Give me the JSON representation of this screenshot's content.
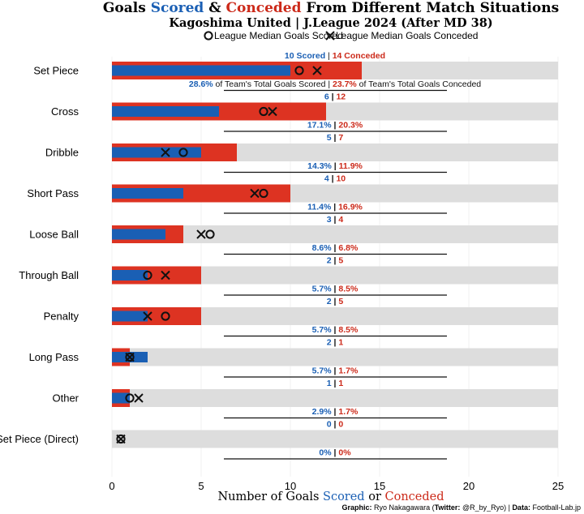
{
  "title": {
    "prefix": "Goals ",
    "scored_word": "Scored",
    "amp": " & ",
    "conceded_word": "Conceded",
    "suffix": " From Different Match Situations"
  },
  "subtitle": "Kagoshima United | J.League 2024 (After MD 38)",
  "legend": {
    "scored_median_label": "League Median Goals Scored",
    "conceded_median_label": "League Median Goals Conceded"
  },
  "colors": {
    "scored": "#1a5fb4",
    "conceded": "#dd3322",
    "track": "#dddddd",
    "scored_text": "#1a5fb4",
    "conceded_text": "#cc2a1a"
  },
  "first_row_labels": {
    "scored_word": "Scored",
    "conceded_word": "Conceded",
    "pct_scored_suffix": " of Team's Total Goals Scored",
    "pct_conceded_suffix": " of Team's Total Goals Conceded"
  },
  "xlabel": {
    "prefix": "Number of Goals ",
    "scored_word": "Scored",
    "or_word": " or ",
    "conceded_word": "Conceded"
  },
  "credit": {
    "graphic_label": "Graphic:",
    "graphic_text": " Ryo Nakagawara (",
    "twitter_label": "Twitter:",
    "twitter_text": " @R_by_Ryo) | ",
    "data_label": "Data:",
    "data_text": " Football-Lab.jp"
  },
  "chart_data": {
    "type": "bar",
    "orientation": "horizontal",
    "xlim": [
      0,
      25
    ],
    "xticks": [
      "0",
      "5",
      "10",
      "15",
      "20",
      "25"
    ],
    "categories": [
      "Set Piece",
      "Cross",
      "Dribble",
      "Short Pass",
      "Loose Ball",
      "Through Ball",
      "Penalty",
      "Long Pass",
      "Other",
      "Set Piece (Direct)"
    ],
    "series": [
      {
        "name": "Scored",
        "values": [
          10,
          6,
          5,
          4,
          3,
          2,
          2,
          2,
          1,
          0
        ]
      },
      {
        "name": "Conceded",
        "values": [
          14,
          12,
          7,
          10,
          4,
          5,
          5,
          1,
          1,
          0
        ]
      }
    ],
    "league_median_scored": [
      10.5,
      8.5,
      4,
      8.5,
      5.5,
      2,
      3,
      1,
      1,
      0.5
    ],
    "league_median_conceded": [
      11.5,
      9,
      3,
      8,
      5,
      3,
      2,
      1,
      1.5,
      0.5
    ],
    "pct_scored": [
      "28.6%",
      "17.1%",
      "14.3%",
      "11.4%",
      "8.6%",
      "5.7%",
      "5.7%",
      "5.7%",
      "2.9%",
      "0%"
    ],
    "pct_conceded": [
      "23.7%",
      "20.3%",
      "11.9%",
      "16.9%",
      "6.8%",
      "8.5%",
      "8.5%",
      "1.7%",
      "1.7%",
      "0%"
    ]
  }
}
